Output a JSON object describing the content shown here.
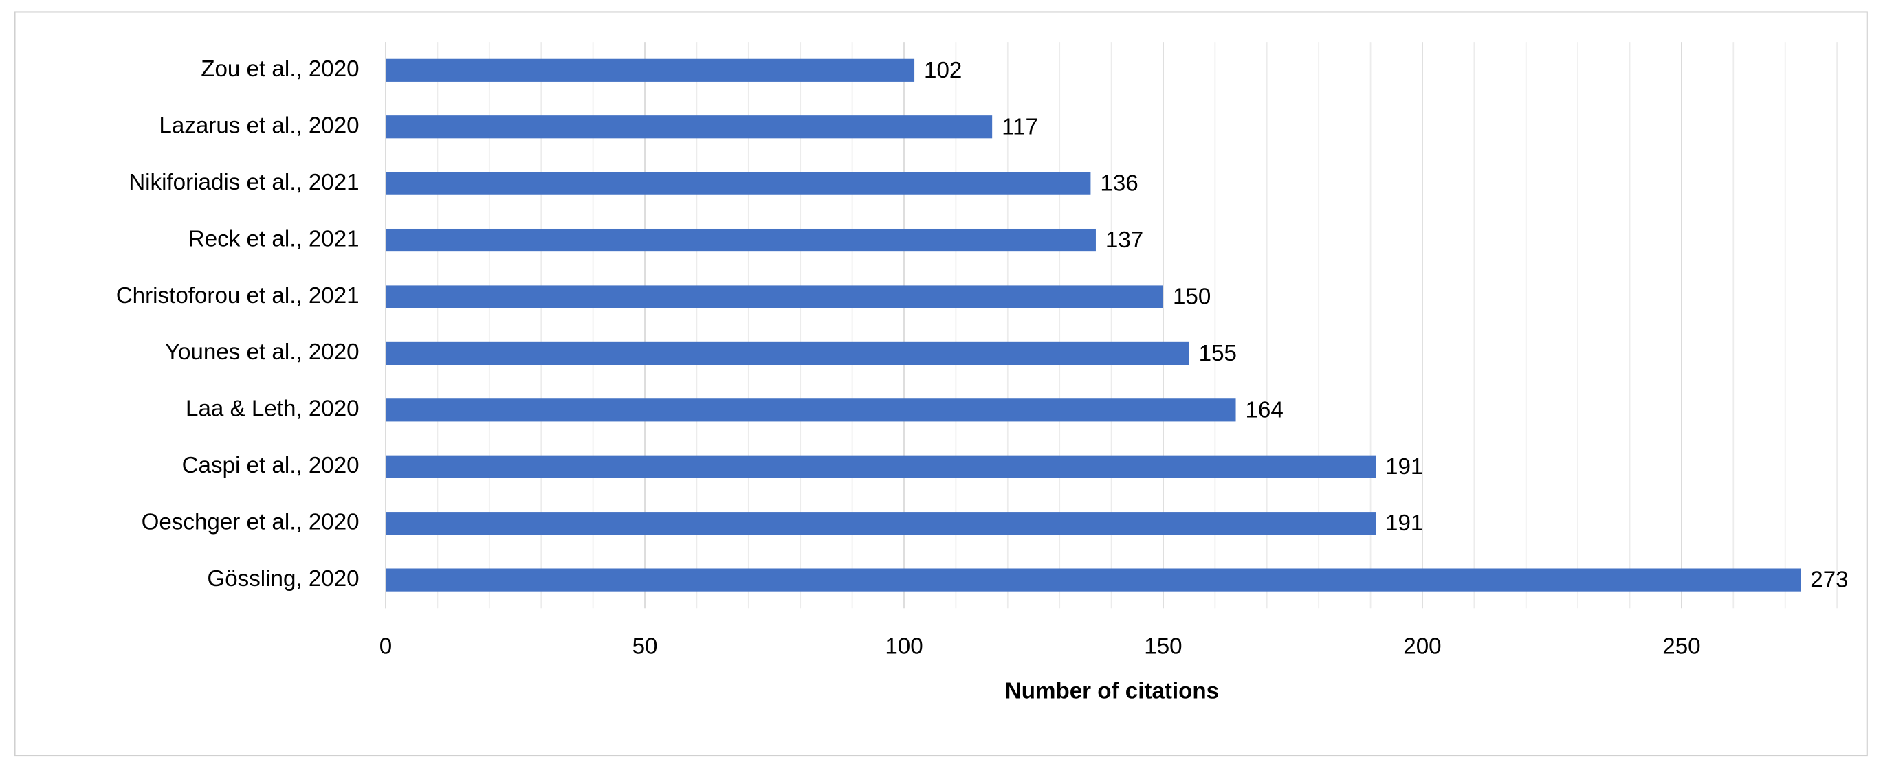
{
  "chart_data": {
    "type": "bar",
    "orientation": "horizontal",
    "x_label": "Number of citations",
    "categories": [
      "Zou et al., 2020",
      "Lazarus et al., 2020",
      "Nikiforiadis et al., 2021",
      "Reck et al., 2021",
      "Christoforou et al., 2021",
      "Younes et al., 2020",
      "Laa & Leth, 2020",
      "Caspi et al., 2020",
      "Oeschger et al., 2020",
      "Gössling, 2020"
    ],
    "values": [
      102,
      117,
      136,
      137,
      150,
      155,
      164,
      191,
      191,
      273
    ],
    "color": "#4472c4",
    "xlim": [
      0,
      280
    ],
    "xticks": [
      0,
      50,
      100,
      150,
      200,
      250
    ],
    "minor_xticks": [
      10,
      20,
      30,
      40,
      60,
      70,
      80,
      90,
      110,
      120,
      130,
      140,
      160,
      170,
      180,
      190,
      210,
      220,
      230,
      240,
      260,
      270,
      280
    ],
    "grid": true,
    "data_labels": true
  }
}
